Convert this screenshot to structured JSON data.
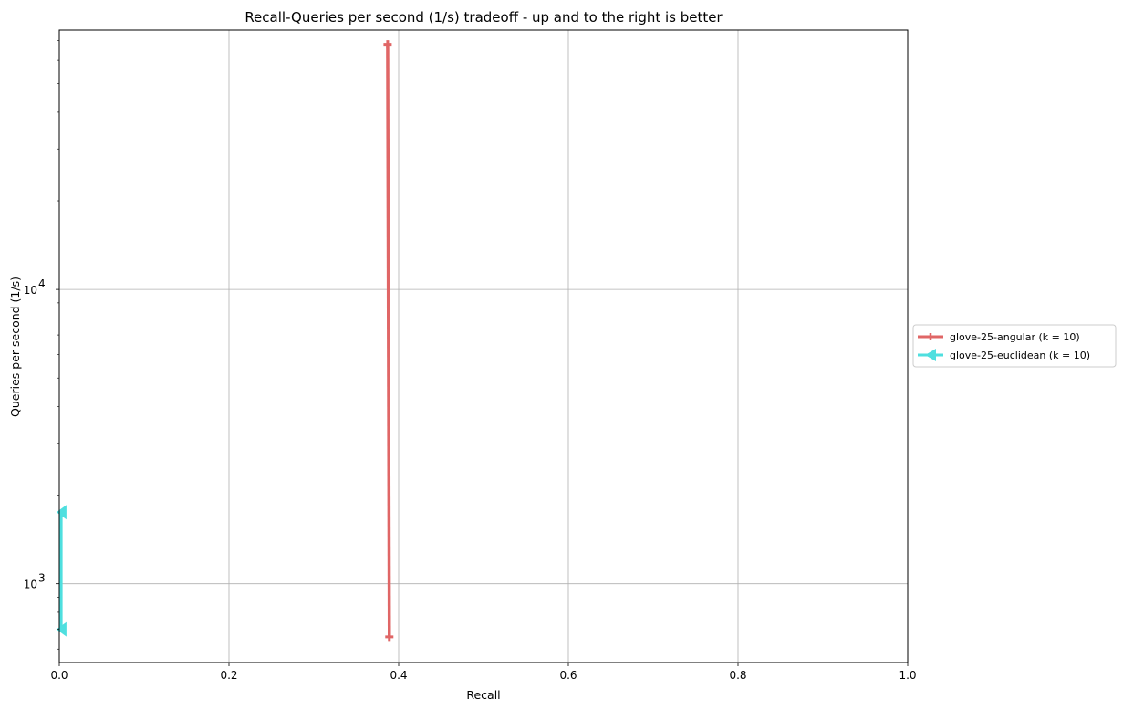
{
  "chart_data": {
    "type": "line",
    "title": "Recall-Queries per second (1/s) tradeoff - up and to the right is better",
    "xlabel": "Recall",
    "ylabel": "Queries per second (1/s)",
    "xlim": [
      0.0,
      1.0
    ],
    "ylim": [
      540,
      76000
    ],
    "y_scale": "log",
    "x_ticks": [
      "0.0",
      "0.2",
      "0.4",
      "0.6",
      "0.8",
      "1.0"
    ],
    "y_major_ticks": [
      {
        "value": 1000,
        "base": "10",
        "exp": "3"
      },
      {
        "value": 10000,
        "base": "10",
        "exp": "4"
      }
    ],
    "grid": true,
    "legend_position": "outside-right",
    "series": [
      {
        "name": "glove-25-angular (k = 10)",
        "color": "#e06666",
        "marker": "plus",
        "x": [
          0.389,
          0.387
        ],
        "y": [
          660,
          68000
        ]
      },
      {
        "name": "glove-25-euclidean (k = 10)",
        "color": "#4fdfdf",
        "marker": "triangle-left",
        "x": [
          0.002,
          0.002
        ],
        "y": [
          700,
          1750
        ]
      }
    ]
  }
}
